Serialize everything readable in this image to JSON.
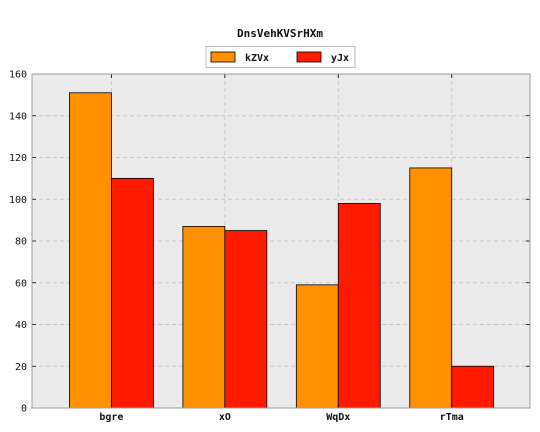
{
  "chart_data": {
    "type": "bar",
    "title": "DnsVehKVSrHXm",
    "xlabel": "",
    "ylabel": "",
    "categories": [
      "bgre",
      "xO",
      "WqDx",
      "rTma"
    ],
    "series": [
      {
        "name": "kZVx",
        "values": [
          151,
          87,
          59,
          115
        ],
        "color": "#ff9100"
      },
      {
        "name": "yJx",
        "values": [
          110,
          85,
          98,
          20
        ],
        "color": "#ff1a00"
      }
    ],
    "ylim": [
      0,
      160
    ],
    "yticks": [
      "0",
      "20",
      "40",
      "60",
      "80",
      "100",
      "120",
      "140",
      "160"
    ],
    "grid": true,
    "legend_position": "top-center",
    "plot_background": "#ebebeb"
  }
}
